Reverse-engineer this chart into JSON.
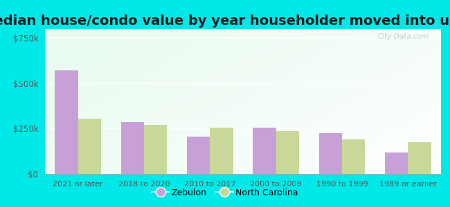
{
  "title": "Median house/condo value by year householder moved into unit",
  "categories": [
    "2021 or later",
    "2018 to 2020",
    "2010 to 2017",
    "2000 to 2009",
    "1990 to 1999",
    "1989 or earlier"
  ],
  "zebulon": [
    570000,
    285000,
    205000,
    255000,
    225000,
    120000
  ],
  "north_carolina": [
    305000,
    270000,
    255000,
    235000,
    190000,
    175000
  ],
  "zebulon_color": "#c8a0d8",
  "nc_color": "#c8d898",
  "background_outer": "#00e8e8",
  "yticks": [
    0,
    250000,
    500000,
    750000
  ],
  "ylim": [
    0,
    800000
  ],
  "title_fontsize": 14,
  "legend_zebulon": "Zebulon",
  "legend_nc": "North Carolina",
  "watermark": "City-Data.com"
}
